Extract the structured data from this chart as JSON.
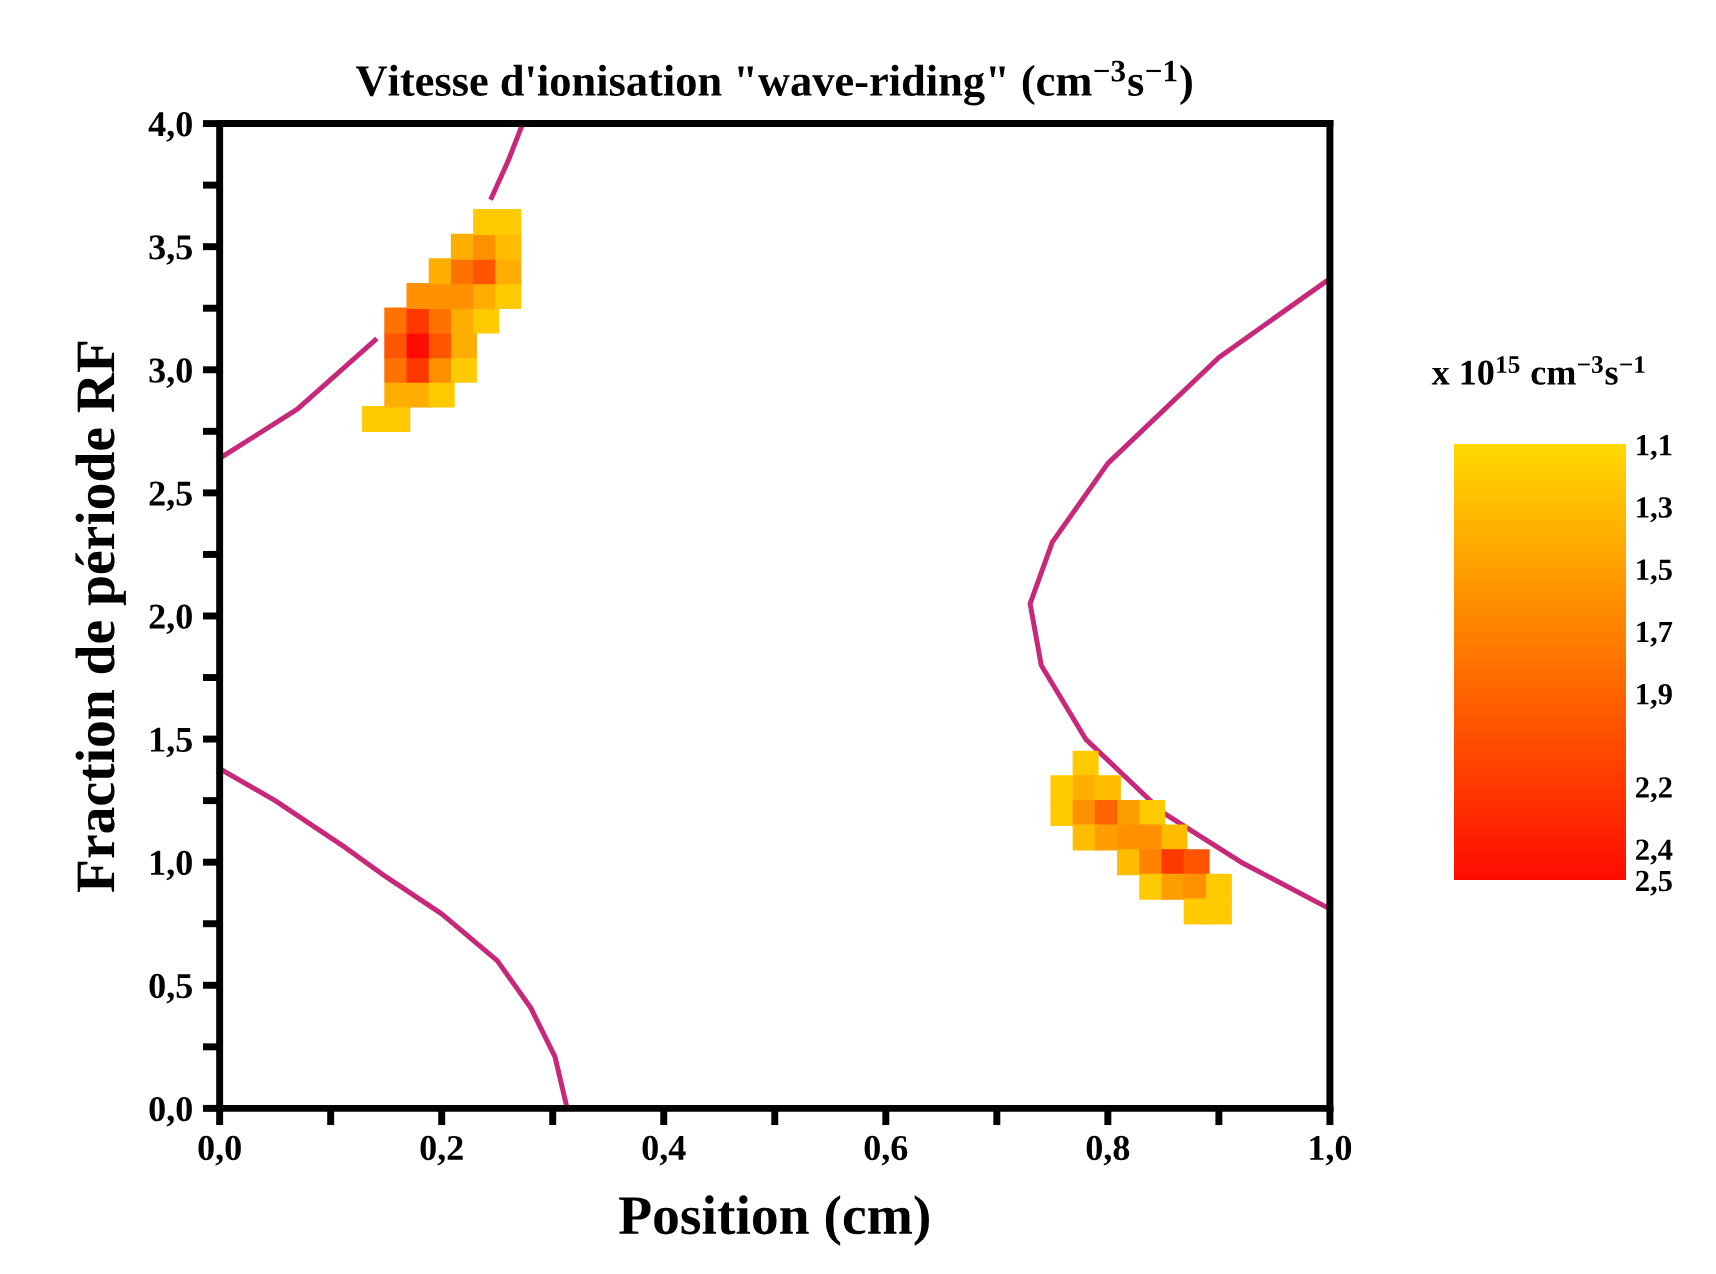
{
  "chart_data": {
    "type": "line",
    "title": "Vitesse d'ionisation \"wave-riding\" (cm$^{−3}$s$^{−1}$)",
    "xlabel": "Position (cm)",
    "ylabel": "Fraction de période RF",
    "clabel": "x 10$^{15}$ cm$^{−3}$s$^{−1}$",
    "xlim": [
      0,
      1
    ],
    "ylim": [
      0,
      4
    ],
    "xticks": [
      {
        "value": 0,
        "label": "0,0"
      },
      {
        "value": 0.1,
        "label": null
      },
      {
        "value": 0.2,
        "label": "0,2"
      },
      {
        "value": 0.3,
        "label": null
      },
      {
        "value": 0.4,
        "label": "0,4"
      },
      {
        "value": 0.5,
        "label": null
      },
      {
        "value": 0.6,
        "label": "0,6"
      },
      {
        "value": 0.7,
        "label": null
      },
      {
        "value": 0.8,
        "label": "0,8"
      },
      {
        "value": 0.9,
        "label": null
      },
      {
        "value": 1,
        "label": "1,0"
      }
    ],
    "yticks": [
      {
        "value": 0,
        "label": "0,0"
      },
      {
        "value": 0.25,
        "label": null
      },
      {
        "value": 0.5,
        "label": "0,5"
      },
      {
        "value": 0.75,
        "label": null
      },
      {
        "value": 1,
        "label": "1,0"
      },
      {
        "value": 1.25,
        "label": null
      },
      {
        "value": 1.5,
        "label": "1,5"
      },
      {
        "value": 1.75,
        "label": null
      },
      {
        "value": 2,
        "label": "2,0"
      },
      {
        "value": 2.25,
        "label": null
      },
      {
        "value": 2.5,
        "label": "2,5"
      },
      {
        "value": 2.75,
        "label": null
      },
      {
        "value": 3,
        "label": "3,0"
      },
      {
        "value": 3.25,
        "label": null
      },
      {
        "value": 3.5,
        "label": "3,5"
      },
      {
        "value": 3.75,
        "label": null
      },
      {
        "value": 4,
        "label": "4,0"
      }
    ],
    "clim": [
      1.1,
      2.5
    ],
    "cticks": [
      {
        "value": 1.1,
        "label": "1,1"
      },
      {
        "value": 1.3,
        "label": "1,3"
      },
      {
        "value": 1.5,
        "label": "1,5"
      },
      {
        "value": 1.7,
        "label": "1,7"
      },
      {
        "value": 1.9,
        "label": "1,9"
      },
      {
        "value": 2.2,
        "label": "2,2"
      },
      {
        "value": 2.4,
        "label": "2,4"
      },
      {
        "value": 2.5,
        "label": "2,5"
      }
    ],
    "series": [
      {
        "type": "line",
        "color": "#c8287a",
        "x": [
          0,
          0.05,
          0.113,
          0.15,
          0.2,
          0.25,
          0.28,
          0.302,
          0.313
        ],
        "values": [
          1.38,
          1.25,
          1.06,
          0.94,
          0.79,
          0.6,
          0.41,
          0.21,
          0
        ]
      },
      {
        "type": "line",
        "color": "#c8287a",
        "x": [
          0,
          0.07,
          0.14,
          0.2,
          0.245,
          0.26,
          0.273
        ],
        "values": [
          2.64,
          2.84,
          3.12,
          null,
          3.7,
          3.85,
          4
        ]
      },
      {
        "type": "line",
        "color": "#c8287a",
        "x": [
          1,
          0.9,
          0.8,
          0.75,
          0.73,
          0.74,
          0.78,
          0.85,
          0.92,
          1
        ],
        "values": [
          3.37,
          3.05,
          2.62,
          2.3,
          2.05,
          1.8,
          1.5,
          1.2,
          1.0,
          0.81
        ]
      },
      {
        "type": "scatter",
        "marker": "square",
        "x": [
          0.14,
          0.16,
          0.16,
          0.18,
          0.2,
          0.16,
          0.18,
          0.2,
          0.22,
          0.16,
          0.18,
          0.2,
          0.22,
          0.16,
          0.18,
          0.2,
          0.22,
          0.24,
          0.18,
          0.2,
          0.22,
          0.24,
          0.26,
          0.2,
          0.22,
          0.24,
          0.26,
          0.22,
          0.24,
          0.26,
          0.24,
          0.26,
          0.78,
          0.76,
          0.78,
          0.8,
          0.76,
          0.78,
          0.8,
          0.82,
          0.84,
          0.78,
          0.8,
          0.82,
          0.84,
          0.86,
          0.82,
          0.84,
          0.86,
          0.88,
          0.84,
          0.86,
          0.88,
          0.9,
          0.88,
          0.9
        ],
        "values": [
          2.8,
          2.8,
          2.9,
          2.9,
          2.9,
          3.0,
          3.0,
          3.0,
          3.0,
          3.1,
          3.1,
          3.1,
          3.1,
          3.2,
          3.2,
          3.2,
          3.2,
          3.2,
          3.3,
          3.3,
          3.3,
          3.3,
          3.3,
          3.4,
          3.4,
          3.4,
          3.4,
          3.5,
          3.5,
          3.5,
          3.6,
          3.6,
          1.4,
          1.3,
          1.3,
          1.3,
          1.2,
          1.2,
          1.2,
          1.2,
          1.2,
          1.1,
          1.1,
          1.1,
          1.1,
          1.1,
          1.0,
          1.0,
          1.0,
          1.0,
          0.9,
          0.9,
          0.9,
          0.9,
          0.8,
          0.8
        ],
        "colors": [
          "#ffca00",
          "#ffca00",
          "#ffad00",
          "#ffad00",
          "#ffca00",
          "#ff7300",
          "#ff3800",
          "#ff9000",
          "#ffca00",
          "#ff5600",
          "#ff0d00",
          "#ff5600",
          "#ffad00",
          "#ff7300",
          "#ff3800",
          "#ff7300",
          "#ffad00",
          "#ffca00",
          "#ff9000",
          "#ff9000",
          "#ff9000",
          "#ffad00",
          "#ffca00",
          "#ffad00",
          "#ff7300",
          "#ff5600",
          "#ffad00",
          "#ffad00",
          "#ff9000",
          "#ffbc00",
          "#ffca00",
          "#ffca00",
          "#ffca00",
          "#ffca00",
          "#ffad00",
          "#ffbc00",
          "#ffca00",
          "#ff9000",
          "#ff6400",
          "#ff9e00",
          "#ffca00",
          "#ffbc00",
          "#ff9e00",
          "#ff9000",
          "#ff9000",
          "#ffbc00",
          "#ffbc00",
          "#ff8100",
          "#ff3800",
          "#ff5600",
          "#ffca00",
          "#ff9e00",
          "#ff9000",
          "#ffca00",
          "#ffca00",
          "#ffca00"
        ],
        "cvalues": [
          1.2,
          1.2,
          1.4,
          1.4,
          1.2,
          1.8,
          2.2,
          1.6,
          1.2,
          2.0,
          2.5,
          2.0,
          1.4,
          1.8,
          2.2,
          1.8,
          1.4,
          1.2,
          1.6,
          1.6,
          1.6,
          1.4,
          1.2,
          1.4,
          1.8,
          2.0,
          1.4,
          1.4,
          1.6,
          1.3,
          1.2,
          1.2,
          1.2,
          1.2,
          1.4,
          1.3,
          1.2,
          1.6,
          1.9,
          1.5,
          1.2,
          1.3,
          1.5,
          1.6,
          1.6,
          1.3,
          1.3,
          1.7,
          2.2,
          2.0,
          1.2,
          1.5,
          1.6,
          1.2,
          1.2,
          1.2
        ]
      }
    ]
  }
}
